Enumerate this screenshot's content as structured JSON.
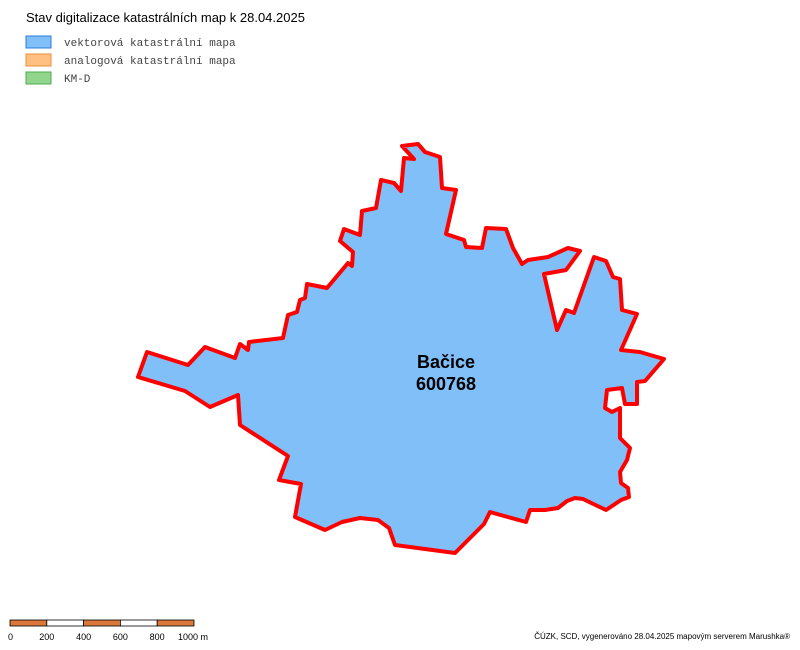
{
  "header": {
    "title": "Stav digitalizace katastrálních map k 28.04.2025"
  },
  "legend": {
    "items": [
      {
        "label": "vektorová katastrální mapa",
        "color": "#80bff8",
        "border": "#2b7fd8"
      },
      {
        "label": "analogová katastrální mapa",
        "color": "#ffc082",
        "border": "#e8903a"
      },
      {
        "label": "KM-D",
        "color": "#92d68e",
        "border": "#4eac4e"
      }
    ]
  },
  "area": {
    "name": "Bačice",
    "code": "600768",
    "fill": "#80bff8",
    "outline": "#ff0000"
  },
  "scale_bar": {
    "labels": [
      "0",
      "200",
      "400",
      "600",
      "800",
      "1000 m"
    ],
    "color": "#d9783a"
  },
  "footer": {
    "credit": "ČÚZK, SCD, vygenerováno 28.04.2025 mapovým serverem Marushka®"
  }
}
